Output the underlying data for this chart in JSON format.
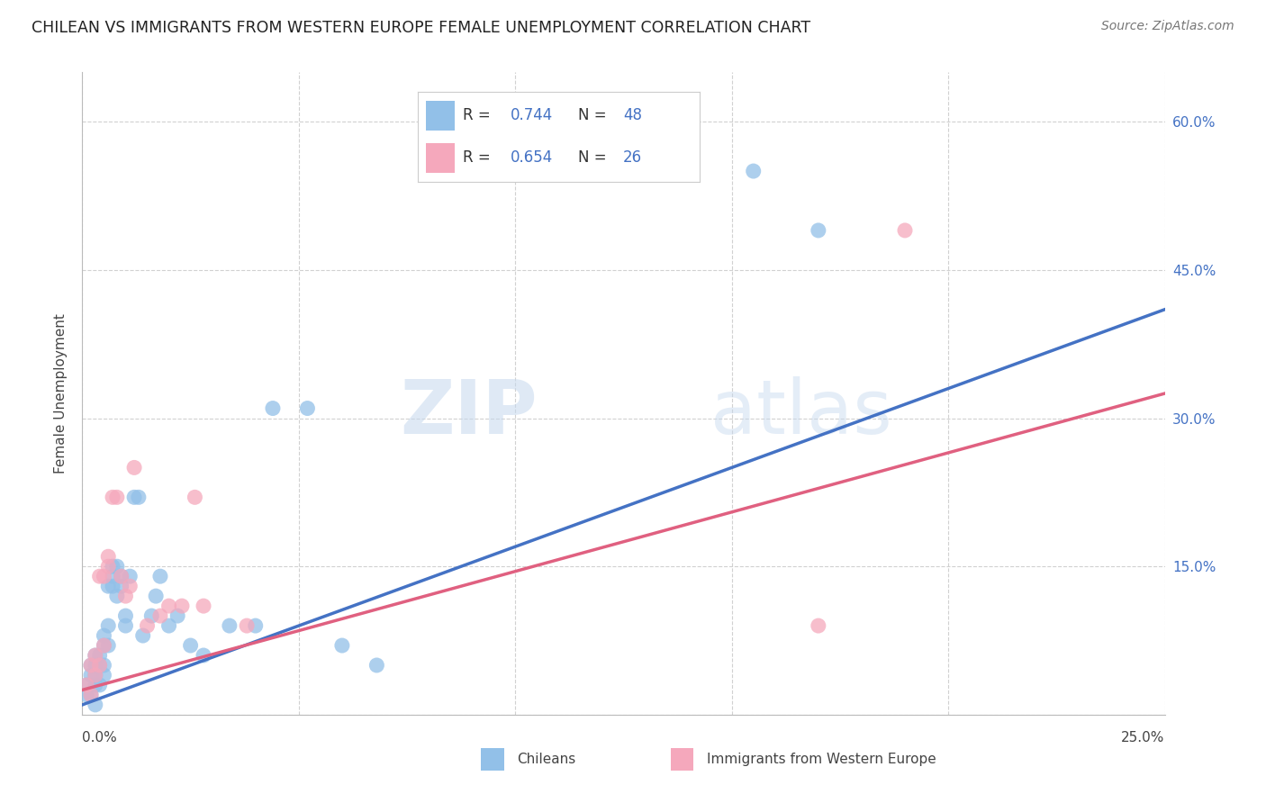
{
  "title": "CHILEAN VS IMMIGRANTS FROM WESTERN EUROPE FEMALE UNEMPLOYMENT CORRELATION CHART",
  "source": "Source: ZipAtlas.com",
  "ylabel": "Female Unemployment",
  "right_yticks": [
    0.0,
    0.15,
    0.3,
    0.45,
    0.6
  ],
  "right_yticklabels": [
    "",
    "15.0%",
    "30.0%",
    "45.0%",
    "60.0%"
  ],
  "xlim": [
    0.0,
    0.25
  ],
  "ylim": [
    0.0,
    0.65
  ],
  "blue_R": 0.744,
  "blue_N": 48,
  "pink_R": 0.654,
  "pink_N": 26,
  "blue_color": "#92c0e8",
  "pink_color": "#f5a8bc",
  "blue_line_color": "#4472c4",
  "pink_line_color": "#e06080",
  "legend_label_blue": "Chileans",
  "legend_label_pink": "Immigrants from Western Europe",
  "background_color": "#ffffff",
  "grid_color": "#cccccc",
  "title_color": "#222222",
  "watermark_color": "#d0e4f4",
  "blue_x": [
    0.001,
    0.001,
    0.002,
    0.002,
    0.002,
    0.003,
    0.003,
    0.003,
    0.003,
    0.003,
    0.004,
    0.004,
    0.004,
    0.005,
    0.005,
    0.005,
    0.005,
    0.006,
    0.006,
    0.006,
    0.007,
    0.007,
    0.007,
    0.008,
    0.008,
    0.009,
    0.009,
    0.01,
    0.01,
    0.011,
    0.012,
    0.013,
    0.014,
    0.016,
    0.017,
    0.018,
    0.02,
    0.022,
    0.025,
    0.028,
    0.034,
    0.04,
    0.044,
    0.052,
    0.06,
    0.068,
    0.155,
    0.17
  ],
  "blue_y": [
    0.02,
    0.03,
    0.04,
    0.05,
    0.02,
    0.03,
    0.04,
    0.05,
    0.06,
    0.01,
    0.03,
    0.05,
    0.06,
    0.04,
    0.05,
    0.07,
    0.08,
    0.07,
    0.09,
    0.13,
    0.13,
    0.14,
    0.15,
    0.12,
    0.15,
    0.13,
    0.14,
    0.09,
    0.1,
    0.14,
    0.22,
    0.22,
    0.08,
    0.1,
    0.12,
    0.14,
    0.09,
    0.1,
    0.07,
    0.06,
    0.09,
    0.09,
    0.31,
    0.31,
    0.07,
    0.05,
    0.55,
    0.49
  ],
  "pink_x": [
    0.001,
    0.002,
    0.002,
    0.003,
    0.003,
    0.004,
    0.004,
    0.005,
    0.005,
    0.006,
    0.006,
    0.007,
    0.008,
    0.009,
    0.01,
    0.011,
    0.012,
    0.015,
    0.018,
    0.02,
    0.023,
    0.026,
    0.028,
    0.038,
    0.17,
    0.19
  ],
  "pink_y": [
    0.03,
    0.02,
    0.05,
    0.04,
    0.06,
    0.05,
    0.14,
    0.07,
    0.14,
    0.15,
    0.16,
    0.22,
    0.22,
    0.14,
    0.12,
    0.13,
    0.25,
    0.09,
    0.1,
    0.11,
    0.11,
    0.22,
    0.11,
    0.09,
    0.09,
    0.49
  ],
  "blue_trend_x": [
    0.0,
    0.25
  ],
  "blue_trend_y": [
    0.01,
    0.41
  ],
  "pink_trend_x": [
    0.0,
    0.25
  ],
  "pink_trend_y": [
    0.025,
    0.325
  ]
}
